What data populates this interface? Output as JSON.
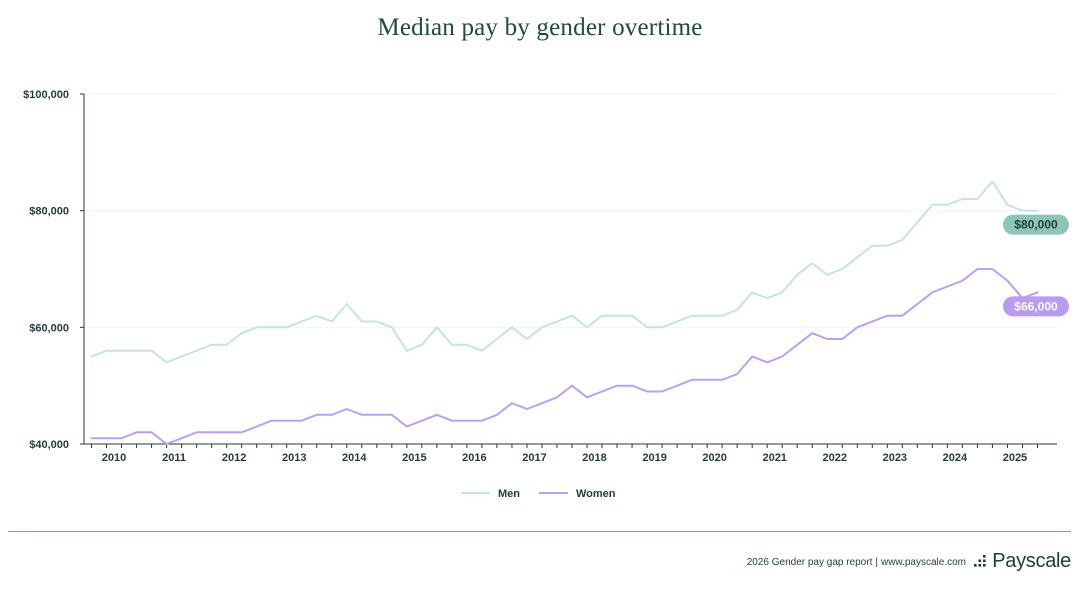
{
  "page": {
    "title": "Median pay by gender overtime"
  },
  "footer": {
    "report": "2026 Gender pay gap report",
    "separator": "|",
    "website": "www.payscale.com",
    "brand": "Payscale"
  },
  "colors": {
    "men": "#c4e6dc",
    "women": "#bd9ff2",
    "men_badge": "#8fc5b9",
    "women_badge": "#b99cef",
    "text": "#1f3d3a"
  },
  "chart_data": {
    "type": "line",
    "title": "Median pay by gender overtime",
    "xlabel": "",
    "ylabel": "",
    "x_range": [
      2009.5,
      2025.7
    ],
    "ylim": [
      40000,
      100000
    ],
    "y_ticks": [
      {
        "value": 40000,
        "label": "$40,000"
      },
      {
        "value": 60000,
        "label": "$60,000"
      },
      {
        "value": 80000,
        "label": "$80,000"
      },
      {
        "value": 100000,
        "label": "$100,000"
      }
    ],
    "x_ticks": [
      {
        "value": 2010,
        "label": "2010"
      },
      {
        "value": 2011,
        "label": "2011"
      },
      {
        "value": 2012,
        "label": "2012"
      },
      {
        "value": 2013,
        "label": "2013"
      },
      {
        "value": 2014,
        "label": "2014"
      },
      {
        "value": 2015,
        "label": "2015"
      },
      {
        "value": 2016,
        "label": "2016"
      },
      {
        "value": 2017,
        "label": "2017"
      },
      {
        "value": 2018,
        "label": "2018"
      },
      {
        "value": 2019,
        "label": "2019"
      },
      {
        "value": 2020,
        "label": "2020"
      },
      {
        "value": 2021,
        "label": "2021"
      },
      {
        "value": 2022,
        "label": "2022"
      },
      {
        "value": 2023,
        "label": "2023"
      },
      {
        "value": 2024,
        "label": "2024"
      },
      {
        "value": 2025,
        "label": "2025"
      }
    ],
    "grid": true,
    "legend_position": "bottom-center",
    "x": [
      2009.625,
      2009.875,
      2010.125,
      2010.375,
      2010.625,
      2010.875,
      2011.125,
      2011.375,
      2011.625,
      2011.875,
      2012.125,
      2012.375,
      2012.625,
      2012.875,
      2013.125,
      2013.375,
      2013.625,
      2013.875,
      2014.125,
      2014.375,
      2014.625,
      2014.875,
      2015.125,
      2015.375,
      2015.625,
      2015.875,
      2016.125,
      2016.375,
      2016.625,
      2016.875,
      2017.125,
      2017.375,
      2017.625,
      2017.875,
      2018.125,
      2018.375,
      2018.625,
      2018.875,
      2019.125,
      2019.375,
      2019.625,
      2019.875,
      2020.125,
      2020.375,
      2020.625,
      2020.875,
      2021.125,
      2021.375,
      2021.625,
      2021.875,
      2022.125,
      2022.375,
      2022.625,
      2022.875,
      2023.125,
      2023.375,
      2023.625,
      2023.875,
      2024.125,
      2024.375,
      2024.625,
      2024.875,
      2025.125,
      2025.375
    ],
    "series": [
      {
        "name": "Men",
        "end_label": "$80,000",
        "values": [
          55000,
          56000,
          56000,
          56000,
          56000,
          54000,
          55000,
          56000,
          57000,
          57000,
          59000,
          60000,
          60000,
          60000,
          61000,
          62000,
          61000,
          64000,
          61000,
          61000,
          60000,
          56000,
          57000,
          60000,
          57000,
          57000,
          56000,
          58000,
          60000,
          58000,
          60000,
          61000,
          62000,
          60000,
          62000,
          62000,
          62000,
          60000,
          60000,
          61000,
          62000,
          62000,
          62000,
          63000,
          66000,
          65000,
          66000,
          69000,
          71000,
          69000,
          70000,
          72000,
          74000,
          74000,
          75000,
          78000,
          81000,
          81000,
          82000,
          82000,
          85000,
          81000,
          80000,
          80000
        ]
      },
      {
        "name": "Women",
        "end_label": "$66,000",
        "values": [
          41000,
          41000,
          41000,
          42000,
          42000,
          40000,
          41000,
          42000,
          42000,
          42000,
          42000,
          43000,
          44000,
          44000,
          44000,
          45000,
          45000,
          46000,
          45000,
          45000,
          45000,
          43000,
          44000,
          45000,
          44000,
          44000,
          44000,
          45000,
          47000,
          46000,
          47000,
          48000,
          50000,
          48000,
          49000,
          50000,
          50000,
          49000,
          49000,
          50000,
          51000,
          51000,
          51000,
          52000,
          55000,
          54000,
          55000,
          57000,
          59000,
          58000,
          58000,
          60000,
          61000,
          62000,
          62000,
          64000,
          66000,
          67000,
          68000,
          70000,
          70000,
          68000,
          65000,
          66000
        ]
      }
    ]
  }
}
